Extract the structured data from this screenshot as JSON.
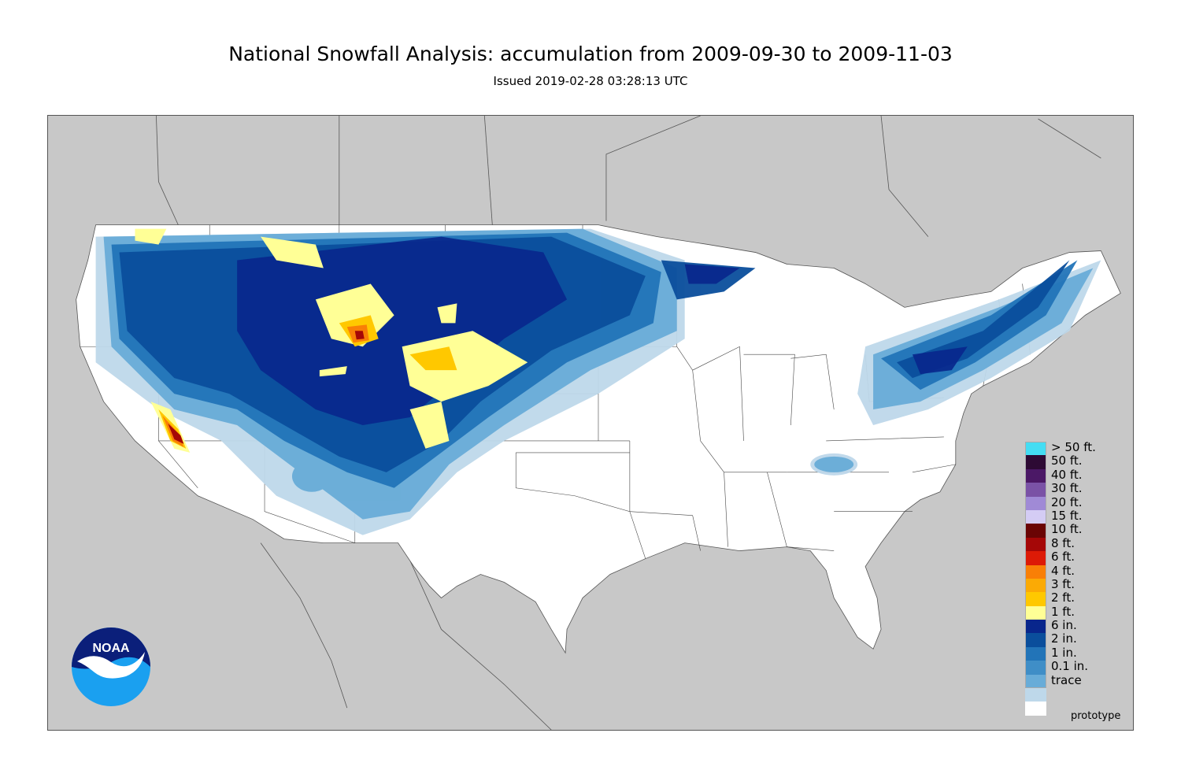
{
  "title": "National Snowfall Analysis: accumulation from 2009-09-30 to 2009-11-03",
  "subtitle": "Issued 2019-02-28 03:28:13 UTC",
  "watermark": "prototype",
  "logo": {
    "text": "NOAA",
    "icon": "noaa-logo"
  },
  "colors": {
    "ocean_land_outside": "#c8c8c8",
    "us_land": "#ffffff",
    "boundary": "#555555"
  },
  "legend": [
    {
      "label": "> 50 ft.",
      "color": "#44ddf3"
    },
    {
      "label": "50 ft.",
      "color": "#2d0a34"
    },
    {
      "label": "40 ft.",
      "color": "#4b1866"
    },
    {
      "label": "30 ft.",
      "color": "#7a52a6"
    },
    {
      "label": "20 ft.",
      "color": "#a08ad6"
    },
    {
      "label": "15 ft.",
      "color": "#d4ccf4"
    },
    {
      "label": "10 ft.",
      "color": "#6a0404"
    },
    {
      "label": "8 ft.",
      "color": "#a50707"
    },
    {
      "label": "6 ft.",
      "color": "#dd1a06"
    },
    {
      "label": "4 ft.",
      "color": "#f97f06"
    },
    {
      "label": "3 ft.",
      "color": "#fbaa05"
    },
    {
      "label": "2 ft.",
      "color": "#ffc800"
    },
    {
      "label": "1 ft.",
      "color": "#ffff96"
    },
    {
      "label": "6 in.",
      "color": "#08268c"
    },
    {
      "label": "2 in.",
      "color": "#0a4e9c"
    },
    {
      "label": "1 in.",
      "color": "#2274b8"
    },
    {
      "label": "0.1 in.",
      "color": "#3f8ec7"
    },
    {
      "label": "trace",
      "color": "#68acd8"
    },
    {
      "label": "",
      "color": "#bed8ea"
    },
    {
      "label": "",
      "color": "#ffffff"
    }
  ]
}
